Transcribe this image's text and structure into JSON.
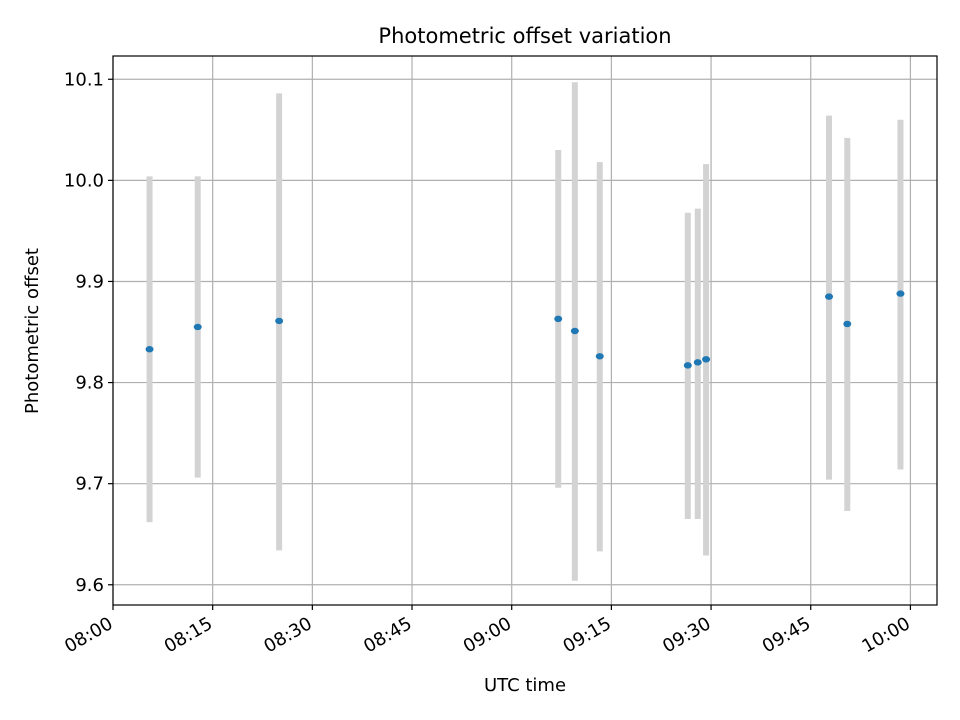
{
  "chart_data": {
    "type": "scatter",
    "title": "Photometric offset variation",
    "xlabel": "UTC time",
    "ylabel": "Photometric offset",
    "x_tick_labels": [
      "08:00",
      "08:15",
      "08:30",
      "08:45",
      "09:00",
      "09:15",
      "09:30",
      "09:45",
      "10:00"
    ],
    "y_tick_labels": [
      "9.6",
      "9.7",
      "9.8",
      "9.9",
      "10.0",
      "10.1"
    ],
    "y_ticks": [
      9.6,
      9.7,
      9.8,
      9.9,
      10.0,
      10.1
    ],
    "xlim": [
      "08:00",
      "10:04"
    ],
    "ylim": [
      9.58,
      10.123
    ],
    "grid": true,
    "marker_color": "#1f77b4",
    "errorbar_color": "#d3d3d3",
    "points": [
      {
        "t": "08:05:30",
        "y": 9.833,
        "low": 9.662,
        "high": 10.004
      },
      {
        "t": "08:12:45",
        "y": 9.855,
        "low": 9.706,
        "high": 10.004
      },
      {
        "t": "08:25:00",
        "y": 9.861,
        "low": 9.634,
        "high": 10.086
      },
      {
        "t": "09:07:00",
        "y": 9.863,
        "low": 9.696,
        "high": 10.03
      },
      {
        "t": "09:09:30",
        "y": 9.851,
        "low": 9.604,
        "high": 10.097
      },
      {
        "t": "09:13:15",
        "y": 9.826,
        "low": 9.633,
        "high": 10.018
      },
      {
        "t": "09:26:30",
        "y": 9.817,
        "low": 9.665,
        "high": 9.968
      },
      {
        "t": "09:28:00",
        "y": 9.82,
        "low": 9.665,
        "high": 9.972
      },
      {
        "t": "09:29:15",
        "y": 9.823,
        "low": 9.629,
        "high": 10.016
      },
      {
        "t": "09:47:45",
        "y": 9.885,
        "low": 9.704,
        "high": 10.064
      },
      {
        "t": "09:50:30",
        "y": 9.858,
        "low": 9.673,
        "high": 10.042
      },
      {
        "t": "09:58:30",
        "y": 9.888,
        "low": 9.714,
        "high": 10.06
      }
    ]
  }
}
